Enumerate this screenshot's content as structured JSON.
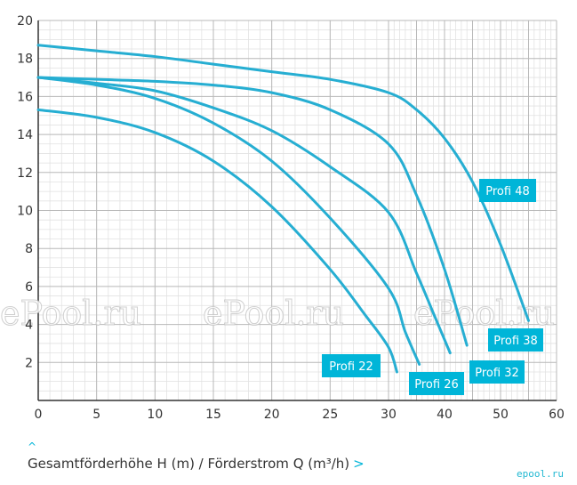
{
  "chart_data": {
    "type": "line",
    "xlabel": "Gesamtförderhöhe H (m) / Förderstrom Q (m³/h)",
    "xlim": [
      0,
      60
    ],
    "ylim": [
      0,
      20
    ],
    "x_ticks": [
      0,
      5,
      10,
      15,
      20,
      25,
      30,
      40,
      50,
      60
    ],
    "y_ticks": [
      2,
      4,
      6,
      8,
      10,
      12,
      14,
      16,
      18,
      20
    ],
    "grid": true,
    "series": [
      {
        "name": "Profi 22",
        "x": [
          0,
          5,
          10,
          15,
          20,
          25,
          28,
          30,
          31.5
        ],
        "y": [
          15.3,
          14.9,
          14.1,
          12.6,
          10.2,
          6.9,
          4.5,
          2.8,
          1.5
        ]
      },
      {
        "name": "Profi 26",
        "x": [
          0,
          5,
          10,
          15,
          20,
          25,
          30,
          33,
          35.5
        ],
        "y": [
          17.0,
          16.6,
          15.9,
          14.6,
          12.6,
          9.6,
          5.9,
          3.6,
          1.9
        ]
      },
      {
        "name": "Profi 32",
        "x": [
          0,
          5,
          10,
          15,
          20,
          25,
          30,
          35,
          38,
          41
        ],
        "y": [
          17.0,
          16.7,
          16.3,
          15.4,
          14.2,
          12.3,
          9.9,
          6.7,
          4.6,
          2.5
        ]
      },
      {
        "name": "Profi 38",
        "x": [
          0,
          5,
          10,
          15,
          20,
          25,
          30,
          35,
          40,
          44
        ],
        "y": [
          17.0,
          16.9,
          16.8,
          16.6,
          16.2,
          15.3,
          13.5,
          10.8,
          6.9,
          2.9
        ]
      },
      {
        "name": "Profi 48",
        "x": [
          0,
          5,
          10,
          15,
          20,
          25,
          30,
          35,
          40,
          45,
          50,
          55
        ],
        "y": [
          18.7,
          18.4,
          18.1,
          17.7,
          17.3,
          16.9,
          16.2,
          15.3,
          13.8,
          11.5,
          8.2,
          4.2
        ]
      }
    ],
    "series_labels": [
      "Profi 22",
      "Profi 26",
      "Profi 32",
      "Profi 38",
      "Profi 48"
    ],
    "colors": {
      "line": "#26aed2",
      "label_bg": "#00b5d8",
      "grid": "#cccccc",
      "axis": "#333333"
    }
  },
  "watermark": {
    "text": "ePool.ru"
  },
  "caption": {
    "caret_up": "^",
    "caret_right": ">"
  },
  "logo": {
    "text": "epool.ru"
  }
}
